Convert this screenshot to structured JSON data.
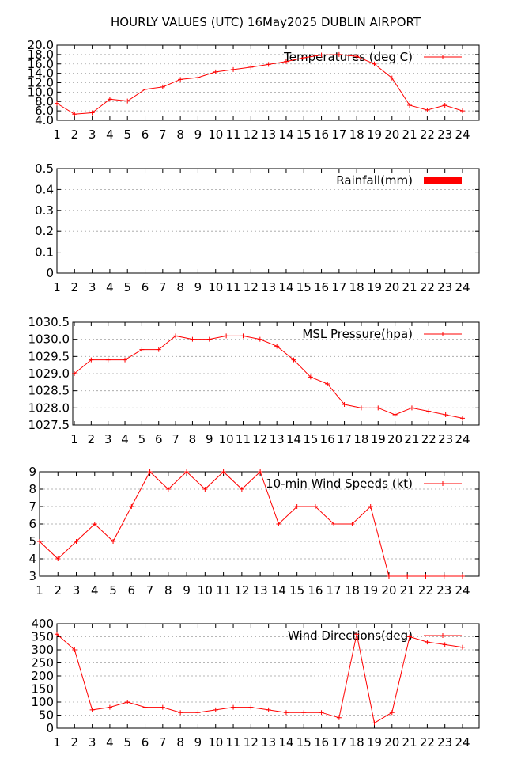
{
  "page": {
    "title": "HOURLY VALUES (UTC) 16May2025  DUBLIN AIRPORT"
  },
  "chart_data": [
    {
      "id": "temperature",
      "type": "line",
      "legend": "Temperatures (deg C)",
      "legend_position": "top-right",
      "color": "#ff0000",
      "grid": true,
      "x": [
        1,
        2,
        3,
        4,
        5,
        6,
        7,
        8,
        9,
        10,
        11,
        12,
        13,
        14,
        15,
        16,
        17,
        18,
        19,
        20,
        21,
        22,
        23,
        24
      ],
      "values": [
        7.6,
        5.3,
        5.6,
        8.5,
        8.1,
        10.6,
        11.1,
        12.7,
        13.1,
        14.3,
        14.8,
        15.3,
        15.9,
        16.5,
        17.3,
        17.9,
        18.0,
        17.6,
        16.0,
        13.0,
        7.2,
        6.2,
        7.2,
        6.0
      ],
      "ylim": [
        4.0,
        20.0
      ],
      "yticks": [
        "4.0",
        "6.0",
        "8.0",
        "10.0",
        "12.0",
        "14.0",
        "16.0",
        "18.0",
        "20.0"
      ],
      "xticks": [
        "1",
        "2",
        "3",
        "4",
        "5",
        "6",
        "7",
        "8",
        "9",
        "10",
        "11",
        "12",
        "13",
        "14",
        "15",
        "16",
        "17",
        "18",
        "19",
        "20",
        "21",
        "22",
        "23",
        "24"
      ]
    },
    {
      "id": "rainfall",
      "type": "bar",
      "legend": "Rainfall(mm)",
      "legend_position": "top-right",
      "color": "#ff0000",
      "grid": true,
      "x": [
        1,
        2,
        3,
        4,
        5,
        6,
        7,
        8,
        9,
        10,
        11,
        12,
        13,
        14,
        15,
        16,
        17,
        18,
        19,
        20,
        21,
        22,
        23,
        24
      ],
      "values": [
        0,
        0,
        0,
        0,
        0,
        0,
        0,
        0,
        0,
        0,
        0,
        0,
        0,
        0,
        0,
        0,
        0,
        0,
        0,
        0,
        0,
        0,
        0,
        0
      ],
      "ylim": [
        0,
        0.5
      ],
      "yticks": [
        "0",
        "0.1",
        "0.2",
        "0.3",
        "0.4",
        "0.5"
      ],
      "xticks": [
        "1",
        "2",
        "3",
        "4",
        "5",
        "6",
        "7",
        "8",
        "9",
        "10",
        "11",
        "12",
        "13",
        "14",
        "15",
        "16",
        "17",
        "18",
        "19",
        "20",
        "21",
        "22",
        "23",
        "24"
      ]
    },
    {
      "id": "pressure",
      "type": "line",
      "legend": "MSL Pressure(hpa)",
      "legend_position": "top-right",
      "color": "#ff0000",
      "grid": true,
      "x": [
        1,
        2,
        3,
        4,
        5,
        6,
        7,
        8,
        9,
        10,
        11,
        12,
        13,
        14,
        15,
        16,
        17,
        18,
        19,
        20,
        21,
        22,
        23,
        24
      ],
      "values": [
        1029.0,
        1029.4,
        1029.4,
        1029.4,
        1029.7,
        1029.7,
        1030.1,
        1030.0,
        1030.0,
        1030.1,
        1030.1,
        1030.0,
        1029.8,
        1029.4,
        1028.9,
        1028.7,
        1028.1,
        1028.0,
        1028.0,
        1027.8,
        1028.0,
        1027.9,
        1027.8,
        1027.7
      ],
      "ylim": [
        1027.5,
        1030.5
      ],
      "yticks": [
        "1027.5",
        "1028.0",
        "1028.5",
        "1029.0",
        "1029.5",
        "1030.0",
        "1030.5"
      ],
      "xticks": [
        "1",
        "2",
        "3",
        "4",
        "5",
        "6",
        "7",
        "8",
        "9",
        "10",
        "11",
        "12",
        "13",
        "14",
        "15",
        "16",
        "17",
        "18",
        "19",
        "20",
        "21",
        "22",
        "23",
        "24"
      ]
    },
    {
      "id": "wind_speed",
      "type": "line",
      "legend": "10-min Wind Speeds (kt)",
      "legend_position": "top-right",
      "color": "#ff0000",
      "grid": true,
      "x": [
        1,
        2,
        3,
        4,
        5,
        6,
        7,
        8,
        9,
        10,
        11,
        12,
        13,
        14,
        15,
        16,
        17,
        18,
        19,
        20,
        21,
        22,
        23,
        24
      ],
      "values": [
        5,
        4,
        5,
        6,
        5,
        7,
        9,
        8,
        9,
        8,
        9,
        8,
        9,
        6,
        7,
        7,
        6,
        6,
        7,
        3,
        3,
        3,
        3,
        3
      ],
      "ylim": [
        3,
        9
      ],
      "yticks": [
        "3",
        "4",
        "5",
        "6",
        "7",
        "8",
        "9"
      ],
      "xticks": [
        "1",
        "2",
        "3",
        "4",
        "5",
        "6",
        "7",
        "8",
        "9",
        "10",
        "11",
        "12",
        "13",
        "14",
        "15",
        "16",
        "17",
        "18",
        "19",
        "20",
        "21",
        "22",
        "23",
        "24"
      ]
    },
    {
      "id": "wind_direction",
      "type": "line",
      "legend": "Wind Directions(deg)",
      "legend_position": "top-right",
      "color": "#ff0000",
      "grid": true,
      "x": [
        1,
        2,
        3,
        4,
        5,
        6,
        7,
        8,
        9,
        10,
        11,
        12,
        13,
        14,
        15,
        16,
        17,
        18,
        19,
        20,
        21,
        22,
        23,
        24
      ],
      "values": [
        360,
        300,
        70,
        80,
        100,
        80,
        80,
        60,
        60,
        70,
        80,
        80,
        70,
        60,
        60,
        60,
        40,
        360,
        20,
        60,
        350,
        330,
        320,
        310
      ],
      "ylim": [
        0,
        400
      ],
      "yticks": [
        "0",
        "50",
        "100",
        "150",
        "200",
        "250",
        "300",
        "350",
        "400"
      ],
      "xticks": [
        "1",
        "2",
        "3",
        "4",
        "5",
        "6",
        "7",
        "8",
        "9",
        "10",
        "11",
        "12",
        "13",
        "14",
        "15",
        "16",
        "17",
        "18",
        "19",
        "20",
        "21",
        "22",
        "23",
        "24"
      ]
    }
  ]
}
